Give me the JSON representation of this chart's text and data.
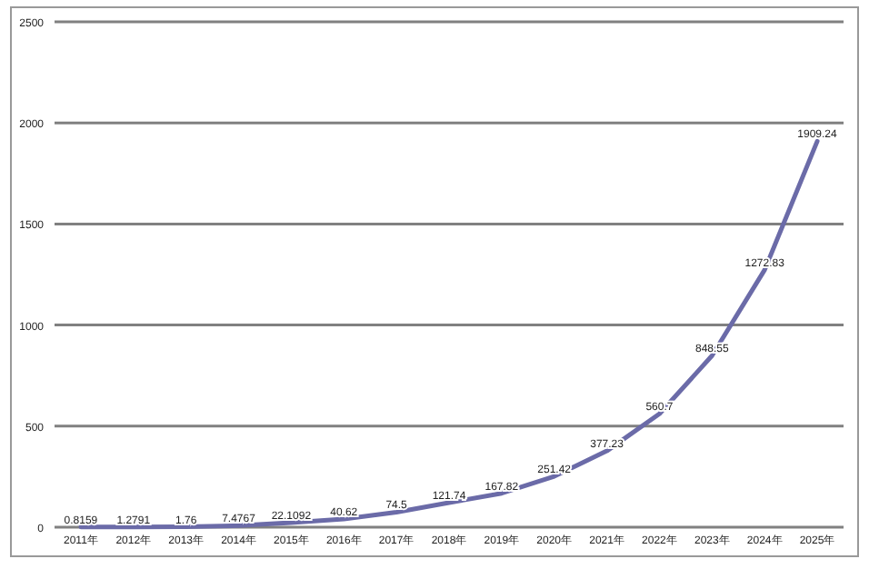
{
  "chart_data": {
    "type": "line",
    "categories": [
      "2011年",
      "2012年",
      "2013年",
      "2014年",
      "2015年",
      "2016年",
      "2017年",
      "2018年",
      "2019年",
      "2020年",
      "2021年",
      "2022年",
      "2023年",
      "2024年",
      "2025年"
    ],
    "series": [
      {
        "color": "#6b6ba8",
        "values": [
          0.8159,
          1.2791,
          1.76,
          7.4767,
          22.1092,
          40.62,
          74.5,
          121.74,
          167.82,
          251.42,
          377.23,
          560.7,
          848.55,
          1272.83,
          1909.24
        ]
      }
    ],
    "ylim": [
      0,
      2500
    ],
    "yticks": [
      0,
      500,
      1000,
      1500,
      2000,
      2500
    ],
    "grid": "y",
    "data_labels": true,
    "marker": "none",
    "line_style": "solid"
  }
}
